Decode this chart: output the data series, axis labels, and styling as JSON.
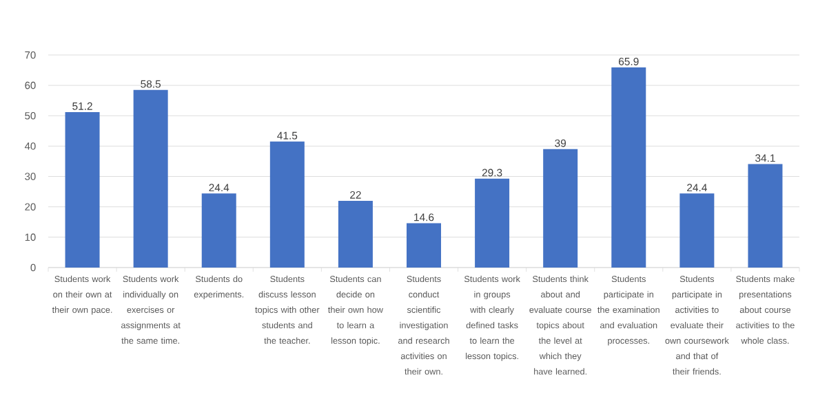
{
  "chart_data": {
    "type": "bar",
    "categories": [
      "Students work on their own at their own pace.",
      "Students work individually on exercises or assignments at the same time.",
      "Students do experiments.",
      "Students discuss lesson topics with other students and the teacher.",
      "Students can decide on their own how to learn a lesson topic.",
      "Students conduct scientific investigation and research activities on their own.",
      "Students work in groups with clearly defined tasks to learn the lesson topics.",
      "Students think about and evaluate course topics about the level at which they have learned.",
      "Students participate in the examination and evaluation processes.",
      "Students participate in activities to evaluate their own coursework and that of their friends.",
      "Students make presentations about course activities to the whole class."
    ],
    "values": [
      51.2,
      58.5,
      24.4,
      41.5,
      22,
      14.6,
      29.3,
      39,
      65.9,
      24.4,
      34.1
    ],
    "color": "#4472c4",
    "ylim": [
      0,
      70
    ],
    "yticks": [
      0,
      10,
      20,
      30,
      40,
      50,
      60,
      70
    ],
    "grid": "y",
    "data_labels": true
  }
}
